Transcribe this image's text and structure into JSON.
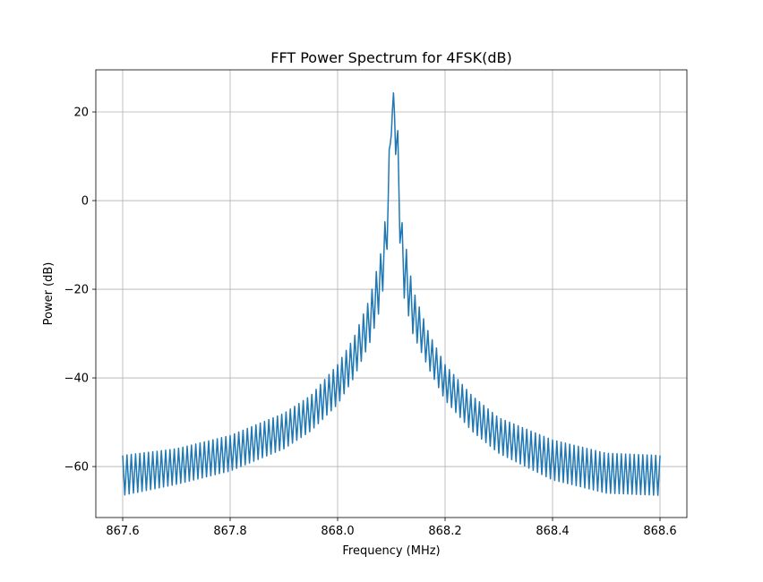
{
  "chart_data": {
    "type": "line",
    "title": "FFT Power Spectrum for 4FSK(dB)",
    "xlabel": "Frequency (MHz)",
    "ylabel": "Power (dB)",
    "xlim": [
      867.55,
      868.65
    ],
    "ylim": [
      -71.5,
      29.5
    ],
    "x_ticks": [
      867.6,
      867.8,
      868.0,
      868.2,
      868.4,
      868.6
    ],
    "x_tick_labels": [
      "867.6",
      "867.8",
      "868.0",
      "868.2",
      "868.4",
      "868.6"
    ],
    "y_ticks": [
      -60,
      -40,
      -20,
      0,
      20
    ],
    "y_tick_labels": [
      "−60",
      "−40",
      "−20",
      "0",
      "20"
    ],
    "grid": true,
    "series": [
      {
        "color": "#1f77b4",
        "envelope_x_MHz": [
          867.6,
          867.7,
          867.8,
          867.9,
          867.95,
          868.0,
          868.03,
          868.06,
          868.08,
          868.09,
          868.095,
          868.1,
          868.105,
          868.11,
          868.12,
          868.14,
          868.17,
          868.2,
          868.25,
          868.3,
          868.4,
          868.5,
          868.6
        ],
        "envelope_upper_dB": [
          -57.5,
          -56,
          -53,
          -48,
          -44,
          -37,
          -31,
          -22,
          -12,
          -3,
          8,
          25.5,
          24,
          21,
          -5,
          -20,
          -30,
          -37,
          -44,
          -49,
          -54,
          -57,
          -57.5
        ],
        "envelope_lower_dB": [
          -66.5,
          -64,
          -61,
          -56,
          -52,
          -46,
          -40,
          -32,
          -24,
          -15,
          -5,
          15,
          17,
          6,
          -20,
          -30,
          -38,
          -45,
          -52,
          -57,
          -63,
          -66,
          -66.5
        ],
        "oscillation_spacing_MHz": 0.008
      }
    ]
  }
}
